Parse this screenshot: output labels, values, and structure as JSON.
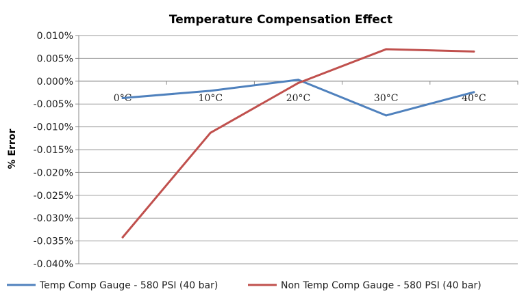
{
  "chart_data": {
    "type": "line",
    "title": "Temperature Compensation Effect",
    "xlabel": "",
    "ylabel": "% Error",
    "categories": [
      "0°C",
      "10°C",
      "20°C",
      "30°C",
      "40°C"
    ],
    "ylim": [
      -0.04,
      0.01
    ],
    "yticks": [
      0.01,
      0.005,
      0.0,
      -0.005,
      -0.01,
      -0.015,
      -0.02,
      -0.025,
      -0.03,
      -0.035,
      -0.04
    ],
    "ytick_labels": [
      "0.010%",
      "0.005%",
      "0.000%",
      "-0.005%",
      "-0.010%",
      "-0.015%",
      "-0.020%",
      "-0.025%",
      "-0.030%",
      "-0.035%",
      "-0.040%"
    ],
    "grid": true,
    "legend_position": "bottom",
    "series": [
      {
        "name": "Temp Comp Gauge - 580 PSI (40 bar)",
        "color": "#4F81BD",
        "values": [
          -0.0037,
          -0.0021,
          0.0003,
          -0.0075,
          -0.0024
        ]
      },
      {
        "name": "Non Temp Comp Gauge - 580 PSI (40 bar)",
        "color": "#C0504D",
        "values": [
          -0.0342,
          -0.0113,
          -0.0004,
          0.007,
          0.0065
        ]
      }
    ]
  }
}
